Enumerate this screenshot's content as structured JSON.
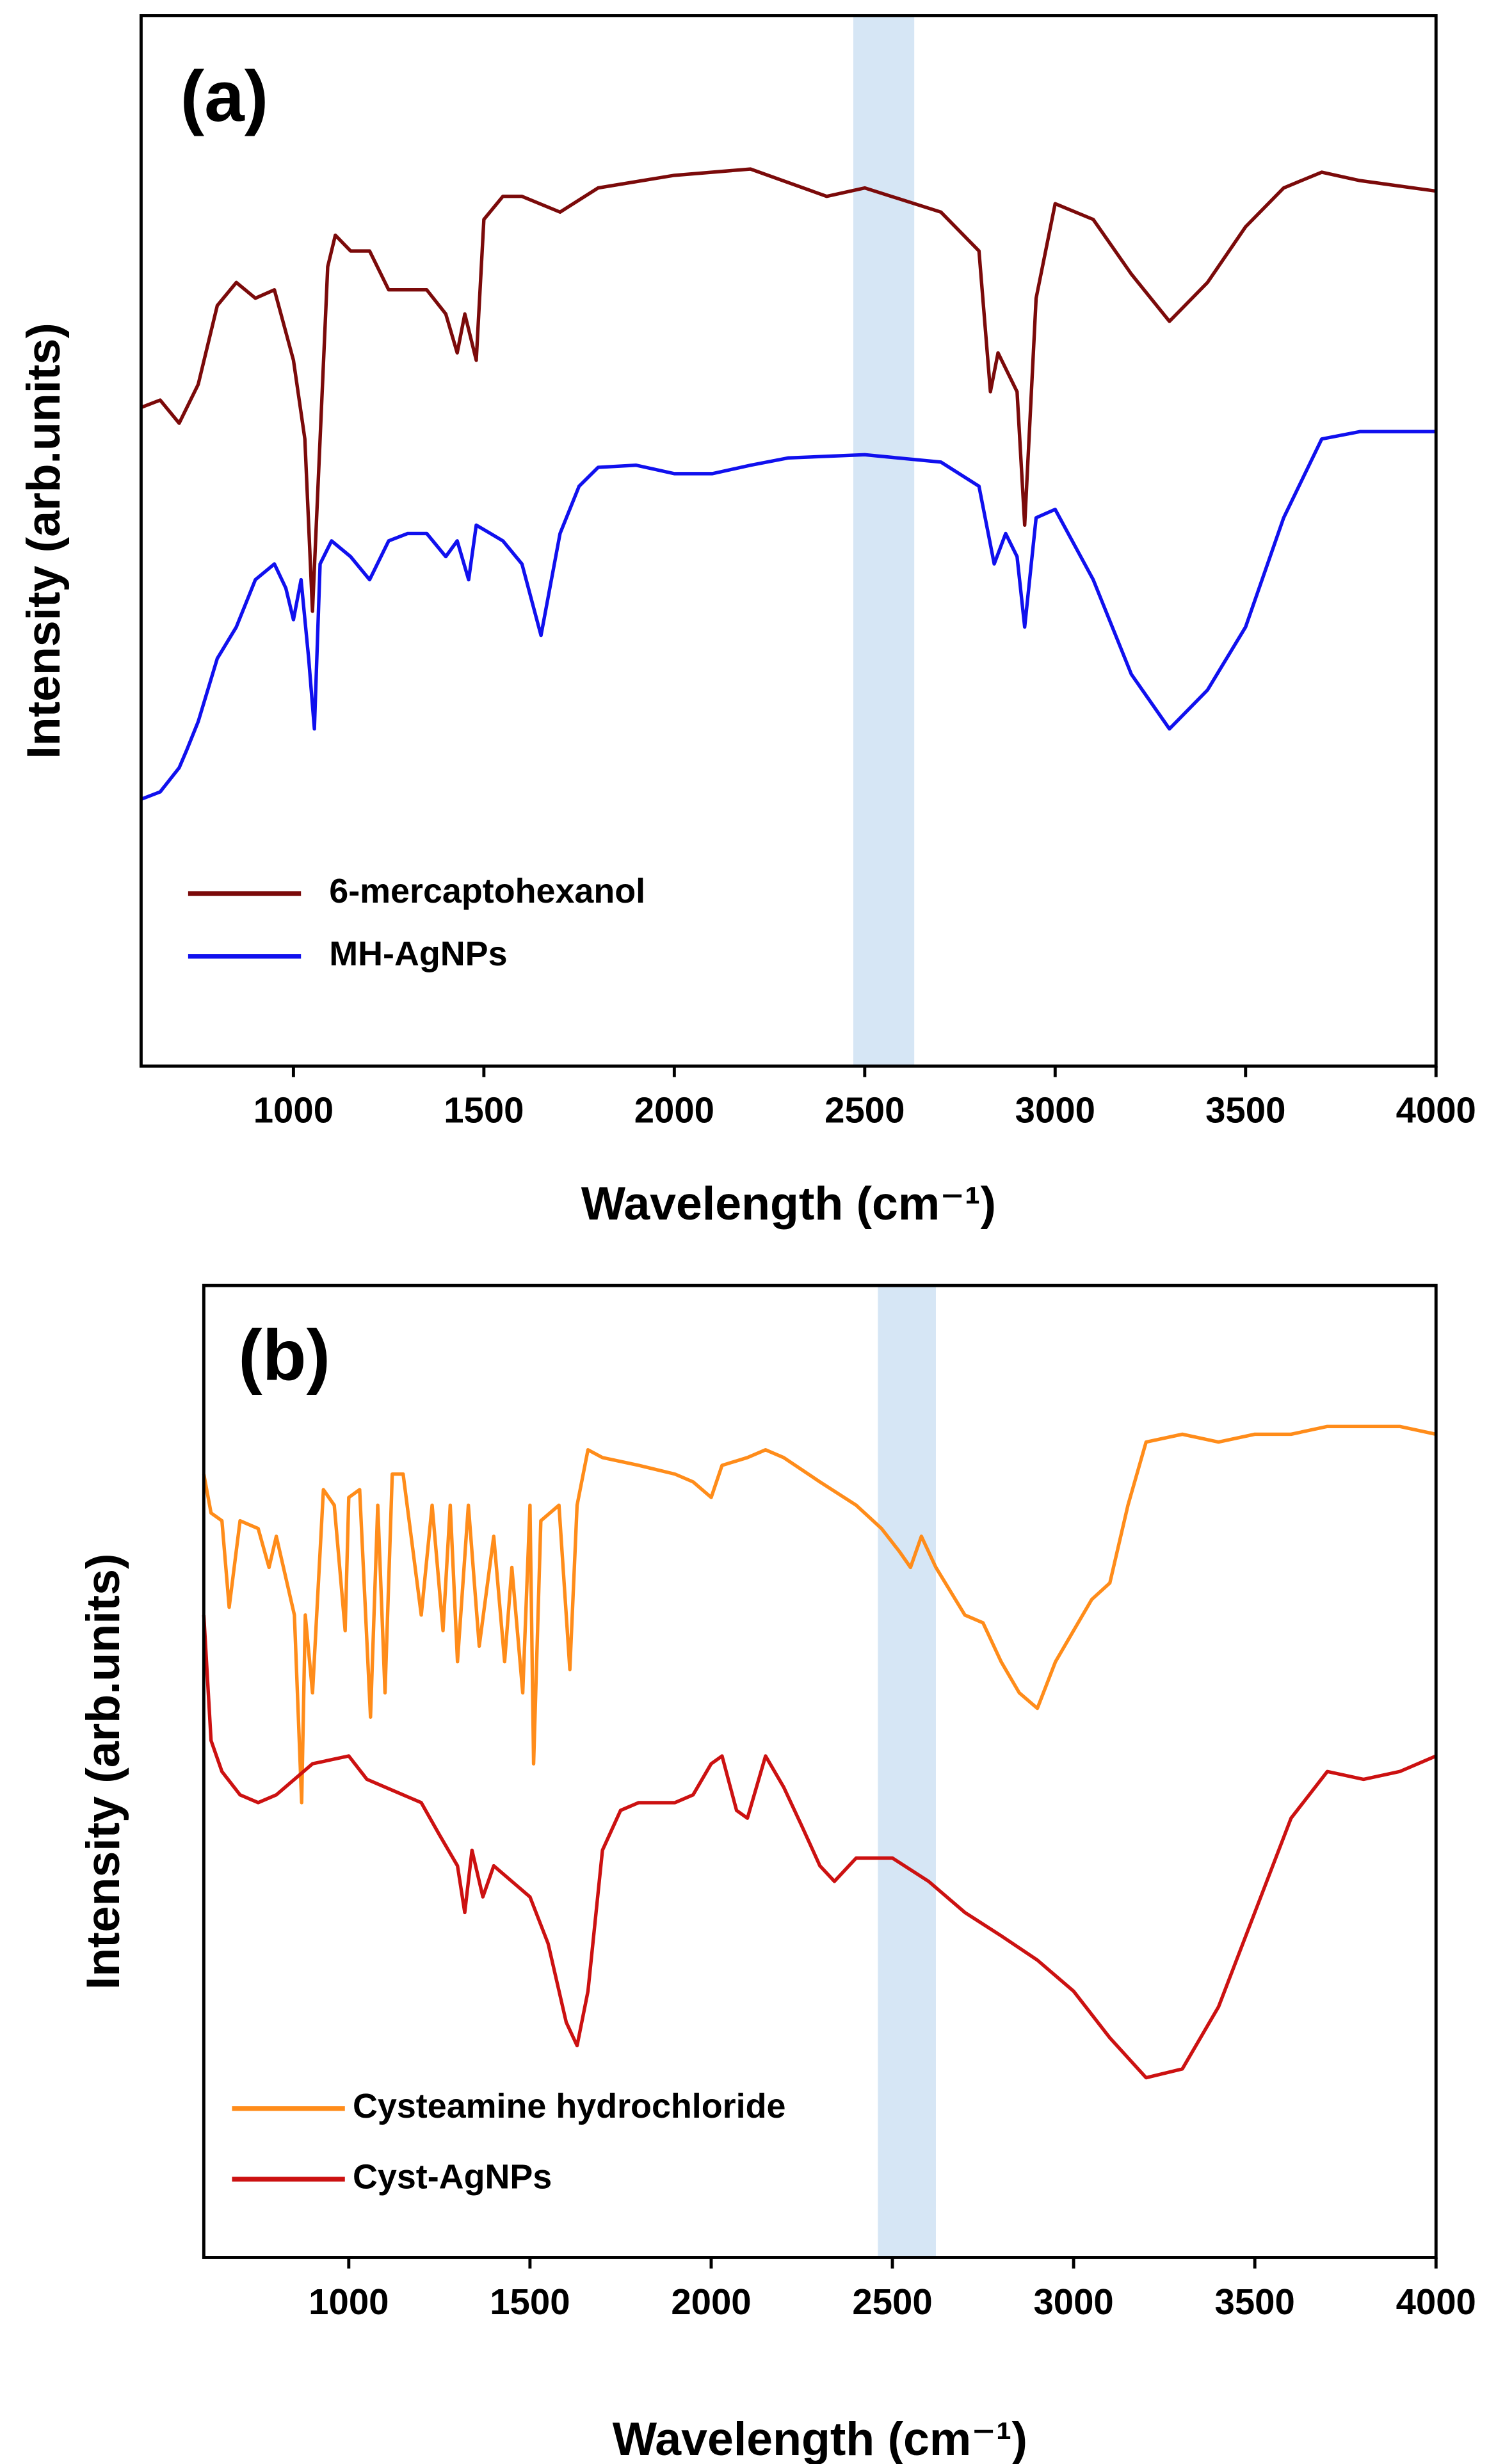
{
  "chart_data": [
    {
      "type": "line",
      "panel_label": "(a)",
      "xlabel": "Wavelength (cm⁻¹)",
      "ylabel": "Intensity (arb.units)",
      "xlim": [
        600,
        4000
      ],
      "xticks": [
        1000,
        1500,
        2000,
        2500,
        3000,
        3500,
        4000
      ],
      "ylim": [
        0,
        100
      ],
      "highlight": [
        2470,
        2630
      ],
      "highlight_color": "#d6e6f5",
      "legend": "lower left",
      "series": [
        {
          "name": "6-mercaptohexanol",
          "color": "#7b0a0a",
          "x": [
            600,
            650,
            700,
            750,
            800,
            850,
            900,
            950,
            1000,
            1030,
            1050,
            1070,
            1090,
            1110,
            1150,
            1200,
            1250,
            1300,
            1350,
            1400,
            1430,
            1450,
            1480,
            1500,
            1550,
            1600,
            1700,
            1800,
            2000,
            2200,
            2400,
            2500,
            2700,
            2800,
            2830,
            2850,
            2900,
            2920,
            2950,
            3000,
            3100,
            3200,
            3300,
            3400,
            3500,
            3600,
            3700,
            3800,
            4000
          ],
          "values": [
            62.7,
            63.4,
            61.2,
            64.9,
            72.4,
            74.6,
            73.1,
            73.9,
            67.2,
            59.7,
            43.3,
            59.7,
            76.1,
            79.1,
            77.6,
            77.6,
            73.9,
            73.9,
            73.9,
            71.6,
            67.9,
            71.6,
            67.2,
            80.6,
            82.8,
            82.8,
            81.3,
            83.6,
            84.8,
            85.4,
            82.8,
            83.6,
            81.3,
            77.6,
            64.2,
            67.9,
            64.2,
            51.5,
            73.1,
            82.1,
            80.6,
            75.4,
            70.9,
            74.6,
            79.9,
            83.6,
            85.1,
            84.3,
            83.3
          ]
        },
        {
          "name": "MH-AgNPs",
          "color": "#1010ee",
          "x": [
            600,
            650,
            700,
            720,
            750,
            800,
            850,
            900,
            950,
            980,
            1000,
            1020,
            1040,
            1055,
            1070,
            1100,
            1150,
            1200,
            1250,
            1300,
            1350,
            1400,
            1430,
            1460,
            1480,
            1550,
            1600,
            1650,
            1700,
            1750,
            1800,
            1900,
            2000,
            2100,
            2200,
            2300,
            2500,
            2700,
            2800,
            2840,
            2870,
            2900,
            2920,
            2950,
            3000,
            3100,
            3200,
            3300,
            3400,
            3500,
            3600,
            3700,
            3800,
            4000
          ],
          "values": [
            25.4,
            26.1,
            28.4,
            30.1,
            32.8,
            38.8,
            41.8,
            46.3,
            47.8,
            45.5,
            42.5,
            46.3,
            38.8,
            32.1,
            47.8,
            50.0,
            48.5,
            46.3,
            50.0,
            50.7,
            50.7,
            48.5,
            50.0,
            46.3,
            51.5,
            50.0,
            47.8,
            41.0,
            50.7,
            55.2,
            57.0,
            57.2,
            56.4,
            56.4,
            57.2,
            57.9,
            58.2,
            57.5,
            55.2,
            47.8,
            50.7,
            48.5,
            41.8,
            52.2,
            53.0,
            46.3,
            37.3,
            32.1,
            35.8,
            41.8,
            52.2,
            59.7,
            60.4,
            60.4
          ]
        }
      ]
    },
    {
      "type": "line",
      "panel_label": "(b)",
      "xlabel": "Wavelength (cm⁻¹)",
      "ylabel": "Intensity (arb.units)",
      "xlim": [
        600,
        4000
      ],
      "xticks": [
        1000,
        1500,
        2000,
        2500,
        3000,
        3500,
        4000
      ],
      "ylim": [
        0,
        100
      ],
      "highlight": [
        2460,
        2620
      ],
      "highlight_color": "#d6e6f5",
      "legend": "lower left",
      "series": [
        {
          "name": "Cysteamine hydrochloride",
          "color": "#ff8c1a",
          "x": [
            600,
            620,
            650,
            670,
            700,
            750,
            780,
            800,
            850,
            870,
            880,
            900,
            930,
            960,
            990,
            1000,
            1030,
            1060,
            1080,
            1100,
            1120,
            1150,
            1200,
            1230,
            1260,
            1280,
            1300,
            1330,
            1360,
            1400,
            1430,
            1450,
            1480,
            1500,
            1510,
            1530,
            1580,
            1610,
            1630,
            1660,
            1700,
            1800,
            1900,
            1950,
            2000,
            2030,
            2100,
            2150,
            2200,
            2300,
            2400,
            2470,
            2520,
            2550,
            2580,
            2620,
            2700,
            2750,
            2800,
            2850,
            2900,
            2950,
            3000,
            3050,
            3100,
            3150,
            3200,
            3300,
            3400,
            3500,
            3600,
            3700,
            3800,
            3900,
            4000
          ],
          "values": [
            80.6,
            76.6,
            75.8,
            66.9,
            75.8,
            75.0,
            71.0,
            74.2,
            66.1,
            46.8,
            66.1,
            58.1,
            79.0,
            77.4,
            64.5,
            78.2,
            79.0,
            55.6,
            77.4,
            58.1,
            80.6,
            80.6,
            66.1,
            77.4,
            64.5,
            77.4,
            61.3,
            77.4,
            62.9,
            74.2,
            61.3,
            71.0,
            58.1,
            77.4,
            50.8,
            75.8,
            77.4,
            60.5,
            77.4,
            83.1,
            82.3,
            81.5,
            80.6,
            79.8,
            78.2,
            81.5,
            82.3,
            83.1,
            82.3,
            79.8,
            77.4,
            75.0,
            72.6,
            71.0,
            74.2,
            71.0,
            66.1,
            65.3,
            61.3,
            58.1,
            56.5,
            61.3,
            64.5,
            67.7,
            69.4,
            77.4,
            83.9,
            84.7,
            83.9,
            84.7,
            84.7,
            85.5,
            85.5,
            85.5,
            84.7
          ]
        },
        {
          "name": "Cyst-AgNPs",
          "color": "#cc1111",
          "x": [
            600,
            620,
            650,
            700,
            750,
            800,
            900,
            1000,
            1050,
            1100,
            1150,
            1200,
            1250,
            1300,
            1320,
            1340,
            1370,
            1400,
            1450,
            1500,
            1550,
            1600,
            1630,
            1660,
            1700,
            1750,
            1800,
            1900,
            1950,
            2000,
            2030,
            2070,
            2100,
            2150,
            2200,
            2250,
            2300,
            2340,
            2400,
            2500,
            2600,
            2700,
            2800,
            2900,
            3000,
            3100,
            3200,
            3300,
            3400,
            3500,
            3600,
            3700,
            3800,
            3900,
            4000
          ],
          "values": [
            66.1,
            53.2,
            50.0,
            47.6,
            46.8,
            47.6,
            50.8,
            51.6,
            49.2,
            48.4,
            47.6,
            46.8,
            43.5,
            40.3,
            35.5,
            41.9,
            37.1,
            40.3,
            38.7,
            37.1,
            32.3,
            24.2,
            21.8,
            27.4,
            41.9,
            46.0,
            46.8,
            46.8,
            47.6,
            50.8,
            51.6,
            46.0,
            45.2,
            51.6,
            48.4,
            44.4,
            40.3,
            38.7,
            41.1,
            41.1,
            38.7,
            35.5,
            33.1,
            30.6,
            27.4,
            22.6,
            18.5,
            19.4,
            25.8,
            35.5,
            45.2,
            50.0,
            49.2,
            50.0,
            51.6
          ]
        }
      ]
    }
  ]
}
